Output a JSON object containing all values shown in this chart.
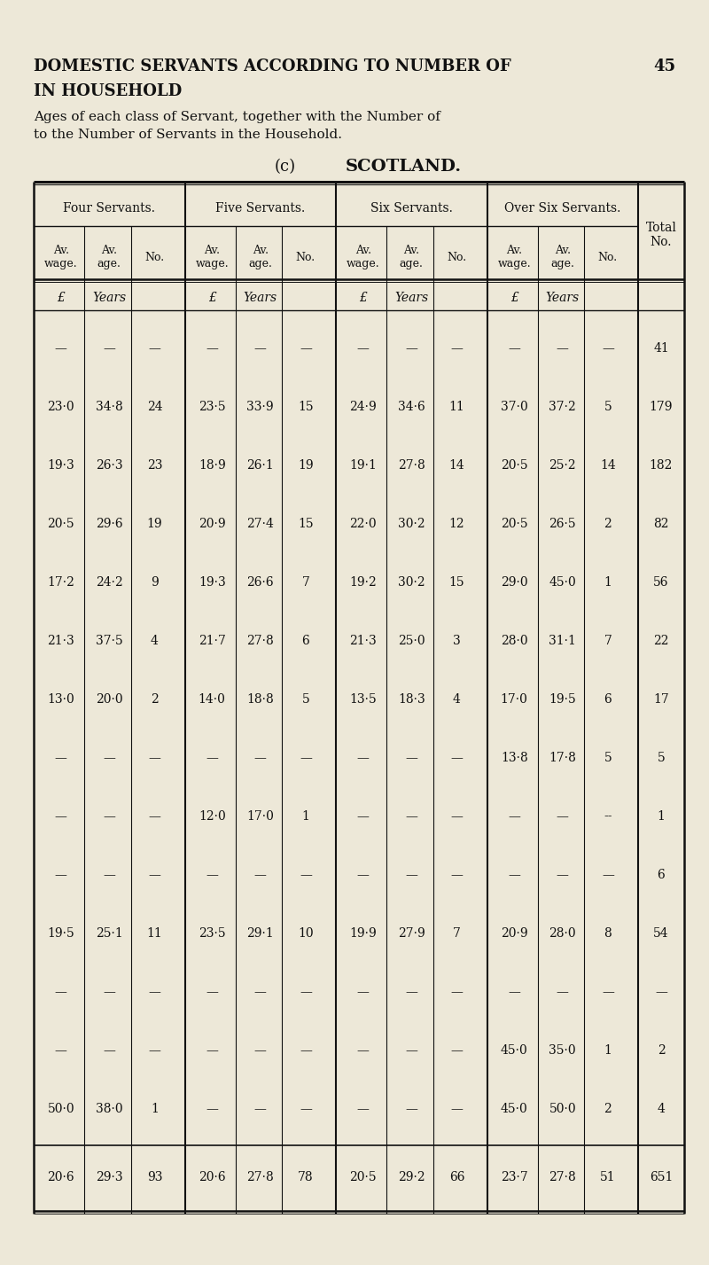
{
  "bg_color": "#ede8d8",
  "text_color": "#1a1a1a",
  "title_line1": "DOMESTIC SERVANTS ACCORDING TO NUMBER OF",
  "title_page": "45",
  "title_line2": "IN HOUSEHOLD",
  "subtitle1": "Ages of each class of Servant, together with the Number of",
  "subtitle2": "to the Number of Servants in the Household.",
  "section_title_paren": "(c)",
  "section_title_main": "SCOTLAND.",
  "col_groups": [
    "Four Servants.",
    "Five Servants.",
    "Six Servants.",
    "Over Six Servants."
  ],
  "subheaders": [
    [
      "Av.\nwage.",
      "Av.\nage.",
      "No."
    ],
    [
      "Av.\nwage.",
      "Av.\nage.",
      "No."
    ],
    [
      "Av.\nwage.",
      "Av.\nage.",
      "No."
    ],
    [
      "Av.\nwage.",
      "Av.\nage.",
      "No."
    ]
  ],
  "total_label": "Total\nNo.",
  "units": [
    "£",
    "Years",
    "",
    "£",
    "Years",
    "",
    "£",
    "Years",
    "",
    "£",
    "Years",
    ""
  ],
  "rows": [
    [
      "—",
      "—",
      "—",
      "—",
      "—",
      "—",
      "—",
      "—",
      "—",
      "—",
      "—",
      "—",
      "41"
    ],
    [
      "23·0",
      "34·8",
      "24",
      "23·5",
      "33·9",
      "15",
      "24·9",
      "34·6",
      "11",
      "37·0",
      "37·2",
      "5",
      "179"
    ],
    [
      "19·3",
      "26·3",
      "23",
      "18·9",
      "26·1",
      "19",
      "19·1",
      "27·8",
      "14",
      "20·5",
      "25·2",
      "14",
      "182"
    ],
    [
      "20·5",
      "29·6",
      "19",
      "20·9",
      "27·4",
      "15",
      "22·0",
      "30·2",
      "12",
      "20·5",
      "26·5",
      "2",
      "82"
    ],
    [
      "17·2",
      "24·2",
      "9",
      "19·3",
      "26·6",
      "7",
      "19·2",
      "30·2",
      "15",
      "29·0",
      "45·0",
      "1",
      "56"
    ],
    [
      "21·3",
      "37·5",
      "4",
      "21·7",
      "27·8",
      "6",
      "21·3",
      "25·0",
      "3",
      "28·0",
      "31·1",
      "7",
      "22"
    ],
    [
      "13·0",
      "20·0",
      "2",
      "14·0",
      "18·8",
      "5",
      "13·5",
      "18·3",
      "4",
      "17·0",
      "19·5",
      "6",
      "17"
    ],
    [
      "—",
      "—",
      "—",
      "—",
      "—",
      "—",
      "—",
      "—",
      "—",
      "13·8",
      "17·8",
      "5",
      "5"
    ],
    [
      "—",
      "—",
      "—",
      "12·0",
      "17·0",
      "1",
      "—",
      "—",
      "—",
      "—",
      "—",
      "--",
      "1"
    ],
    [
      "—",
      "—",
      "—",
      "—",
      "—",
      "—",
      "—",
      "—",
      "—",
      "—",
      "—",
      "—",
      "6"
    ],
    [
      "19·5",
      "25·1",
      "11",
      "23·5",
      "29·1",
      "10",
      "19·9",
      "27·9",
      "7",
      "20·9",
      "28·0",
      "8",
      "54"
    ],
    [
      "—",
      "—",
      "—",
      "—",
      "—",
      "—",
      "—",
      "—",
      "—",
      "—",
      "—",
      "—",
      "—"
    ],
    [
      "—",
      "—",
      "—",
      "—",
      "—",
      "—",
      "—",
      "—",
      "—",
      "45·0",
      "35·0",
      "1",
      "2"
    ],
    [
      "50·0",
      "38·0",
      "1",
      "—",
      "—",
      "—",
      "—",
      "—",
      "—",
      "45·0",
      "50·0",
      "2",
      "4"
    ]
  ],
  "totals_row": [
    "20·6",
    "29·3",
    "93",
    "20·6",
    "27·8",
    "78",
    "20·5",
    "29·2",
    "66",
    "23·7",
    "27·8",
    "51",
    "651"
  ]
}
